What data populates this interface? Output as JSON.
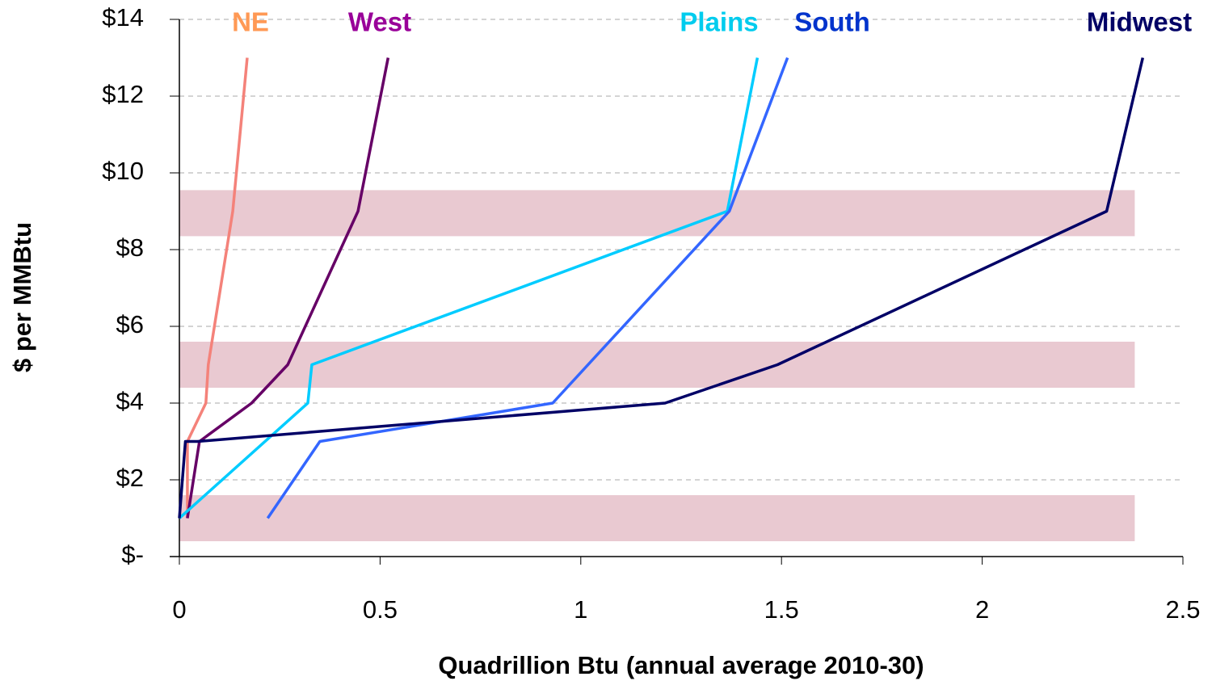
{
  "chart_data": {
    "type": "line",
    "x_label": "Quadrillion Btu (annual average 2010-30)",
    "y_label": "$ per MMBtu",
    "xlim": [
      0,
      2.5
    ],
    "xticks": [
      0,
      0.5,
      1,
      1.5,
      2,
      2.5
    ],
    "ylim": [
      0,
      14
    ],
    "yticks": [
      {
        "value": 0,
        "label": "$-"
      },
      {
        "value": 2,
        "label": "$2"
      },
      {
        "value": 4,
        "label": "$4"
      },
      {
        "value": 6,
        "label": "$6"
      },
      {
        "value": 8,
        "label": "$8"
      },
      {
        "value": 10,
        "label": "$10"
      },
      {
        "value": 12,
        "label": "$12"
      },
      {
        "value": 14,
        "label": "$14"
      }
    ],
    "grid": true,
    "bands": {
      "x": [
        0,
        2.38
      ],
      "ranges": [
        [
          0.4,
          1.6
        ],
        [
          4.4,
          5.6
        ],
        [
          8.35,
          9.55
        ]
      ],
      "color": "#e9c9d1"
    },
    "series": [
      {
        "name": "NE",
        "color": "#f4827a",
        "label_color": "#ff9955",
        "x": [
          0.02,
          0.02,
          0.066,
          0.072,
          0.133,
          0.169
        ],
        "values": [
          1,
          3,
          4,
          5,
          9,
          13
        ]
      },
      {
        "name": "West",
        "color": "#660066",
        "label_color": "#990099",
        "x": [
          0.02,
          0.05,
          0.18,
          0.27,
          0.445,
          0.52
        ],
        "values": [
          1,
          3,
          4,
          5,
          9,
          13
        ]
      },
      {
        "name": "Plains",
        "color": "#00ccff",
        "label_color": "#00ccee",
        "x": [
          0,
          0.32,
          0.33,
          1.365,
          1.44
        ],
        "values": [
          1,
          4,
          5,
          9,
          13
        ]
      },
      {
        "name": "South",
        "color": "#3366ff",
        "label_color": "#0033cc",
        "x": [
          0.22,
          0.35,
          0.93,
          1.37,
          1.515
        ],
        "values": [
          1,
          3,
          4,
          9,
          13
        ]
      },
      {
        "name": "Midwest",
        "color": "#000066",
        "label_color": "#000066",
        "x": [
          0,
          0.015,
          0.045,
          1.21,
          1.49,
          2.31,
          2.4
        ],
        "values": [
          1,
          3,
          3,
          4,
          5,
          9,
          13
        ]
      }
    ]
  }
}
